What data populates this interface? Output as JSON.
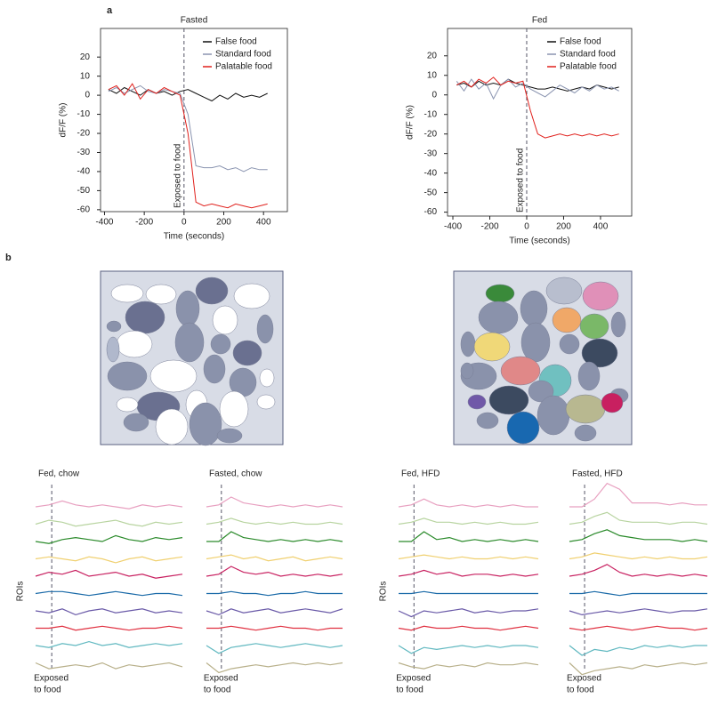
{
  "panel_labels": [
    "a",
    "b"
  ],
  "chart_data": [
    {
      "type": "line",
      "title": "Fasted",
      "x_label": "Time (seconds)",
      "y_label": "dF/F (%)",
      "annotation": "Exposed to food",
      "vline": 0,
      "xlim": [
        -420,
        520
      ],
      "ylim": [
        -61,
        35
      ],
      "xticks": [
        -400,
        -200,
        0,
        200,
        400
      ],
      "yticks": [
        -60,
        -50,
        -40,
        -30,
        -20,
        -10,
        0,
        10,
        20
      ],
      "legend": "upper right",
      "x": [
        -380,
        -340,
        -300,
        -260,
        -220,
        -180,
        -140,
        -100,
        -60,
        -20,
        20,
        60,
        100,
        140,
        180,
        220,
        260,
        300,
        340,
        380,
        420
      ],
      "series": [
        {
          "name": "False food",
          "color": "#111111",
          "values": [
            3,
            1,
            4,
            2,
            0,
            3,
            1,
            2,
            0,
            2,
            3,
            1,
            -1,
            -3,
            0,
            -2,
            1,
            -1,
            0,
            -1,
            1
          ]
        },
        {
          "name": "Standard food",
          "color": "#8a94b0",
          "values": [
            2,
            4,
            1,
            3,
            5,
            2,
            1,
            3,
            2,
            1,
            -10,
            -37,
            -38,
            -38,
            -37,
            -39,
            -38,
            -40,
            -38,
            -39,
            -39
          ]
        },
        {
          "name": "Palatable food",
          "color": "#e0201c",
          "values": [
            3,
            5,
            0,
            6,
            -2,
            3,
            1,
            4,
            2,
            0,
            -20,
            -56,
            -58,
            -57,
            -58,
            -59,
            -57,
            -58,
            -59,
            -58,
            -57
          ]
        }
      ]
    },
    {
      "type": "line",
      "title": "Fed",
      "x_label": "Time (seconds)",
      "y_label": "dF/F (%)",
      "annotation": "Exposed to food",
      "vline": 0,
      "xlim": [
        -429,
        569
      ],
      "ylim": [
        -62,
        34
      ],
      "xticks": [
        -400,
        -200,
        0,
        200,
        400
      ],
      "yticks": [
        -60,
        -50,
        -40,
        -30,
        -20,
        -10,
        0,
        10,
        20
      ],
      "legend": "upper right",
      "x": [
        -380,
        -340,
        -300,
        -260,
        -220,
        -180,
        -140,
        -100,
        -60,
        -20,
        20,
        60,
        100,
        140,
        180,
        220,
        260,
        300,
        340,
        380,
        420,
        460,
        500
      ],
      "series": [
        {
          "name": "False food",
          "color": "#111111",
          "values": [
            5,
            6,
            4,
            7,
            5,
            6,
            5,
            8,
            6,
            5,
            4,
            3,
            3,
            4,
            3,
            2,
            3,
            4,
            3,
            5,
            4,
            3,
            4
          ]
        },
        {
          "name": "Standard food",
          "color": "#8a94b0",
          "values": [
            7,
            2,
            8,
            3,
            6,
            -2,
            5,
            8,
            4,
            6,
            3,
            1,
            -1,
            2,
            5,
            3,
            1,
            4,
            2,
            5,
            3,
            4,
            2
          ]
        },
        {
          "name": "Palatable food",
          "color": "#e0201c",
          "values": [
            5,
            7,
            4,
            8,
            6,
            9,
            5,
            7,
            6,
            7,
            -8,
            -20,
            -22,
            -21,
            -20,
            -21,
            -20,
            -21,
            -20,
            -21,
            -20,
            -21,
            -20
          ]
        }
      ]
    },
    {
      "type": "traces",
      "title": "Fed, chow",
      "y_label": "ROIs",
      "annotation": [
        "Exposed",
        "to food"
      ],
      "series": [
        {
          "color": "#e8a0c0",
          "values": [
            0,
            1,
            3,
            1,
            0,
            1,
            0,
            -1,
            1,
            0,
            1,
            0
          ]
        },
        {
          "color": "#b8d4a0",
          "values": [
            0,
            2,
            1,
            -1,
            0,
            1,
            2,
            0,
            -1,
            1,
            0,
            1
          ]
        },
        {
          "color": "#2a8a2a",
          "values": [
            0,
            -1,
            1,
            2,
            1,
            0,
            3,
            1,
            0,
            2,
            1,
            2
          ]
        },
        {
          "color": "#f0d070",
          "values": [
            0,
            1,
            0,
            -1,
            1,
            0,
            -2,
            0,
            1,
            -1,
            0,
            1
          ]
        },
        {
          "color": "#c82060",
          "values": [
            0,
            2,
            1,
            3,
            0,
            1,
            2,
            0,
            1,
            -1,
            0,
            1
          ]
        },
        {
          "color": "#1a6aa8",
          "values": [
            0,
            1,
            1,
            0,
            -1,
            0,
            1,
            0,
            -1,
            0,
            0,
            -1
          ]
        },
        {
          "color": "#6a5aa8",
          "values": [
            0,
            -1,
            1,
            -2,
            0,
            1,
            -1,
            0,
            1,
            -1,
            0,
            -1
          ]
        },
        {
          "color": "#e03040",
          "values": [
            0,
            0,
            1,
            -1,
            0,
            1,
            0,
            -1,
            0,
            0,
            1,
            0
          ]
        },
        {
          "color": "#60b8c0",
          "values": [
            0,
            -1,
            1,
            0,
            2,
            0,
            1,
            -1,
            0,
            1,
            0,
            1
          ]
        },
        {
          "color": "#b8b08a",
          "values": [
            0,
            -3,
            -2,
            -1,
            -2,
            0,
            -3,
            -1,
            -2,
            -1,
            0,
            -2
          ]
        }
      ]
    },
    {
      "type": "traces",
      "title": "Fasted, chow",
      "annotation": [
        "Exposed",
        "to food"
      ],
      "series": [
        {
          "color": "#e8a0c0",
          "values": [
            0,
            1,
            5,
            2,
            1,
            0,
            1,
            0,
            1,
            0,
            1,
            0
          ]
        },
        {
          "color": "#b8d4a0",
          "values": [
            0,
            1,
            3,
            1,
            0,
            1,
            0,
            1,
            0,
            0,
            1,
            0
          ]
        },
        {
          "color": "#2a8a2a",
          "values": [
            0,
            0,
            5,
            2,
            1,
            0,
            1,
            0,
            1,
            0,
            1,
            0
          ]
        },
        {
          "color": "#f0d070",
          "values": [
            0,
            1,
            2,
            0,
            1,
            -1,
            0,
            1,
            -1,
            0,
            1,
            0
          ]
        },
        {
          "color": "#c82060",
          "values": [
            0,
            1,
            5,
            2,
            1,
            2,
            0,
            1,
            0,
            1,
            0,
            1
          ]
        },
        {
          "color": "#1a6aa8",
          "values": [
            0,
            0,
            1,
            0,
            0,
            -1,
            0,
            0,
            1,
            0,
            0,
            0
          ]
        },
        {
          "color": "#6a5aa8",
          "values": [
            0,
            -2,
            1,
            -1,
            0,
            1,
            -1,
            0,
            1,
            0,
            -1,
            1
          ]
        },
        {
          "color": "#e03040",
          "values": [
            0,
            0,
            1,
            0,
            -1,
            0,
            1,
            0,
            0,
            -1,
            0,
            0
          ]
        },
        {
          "color": "#60b8c0",
          "values": [
            0,
            -4,
            -1,
            0,
            1,
            0,
            -1,
            0,
            1,
            0,
            -1,
            0
          ]
        },
        {
          "color": "#b8b08a",
          "values": [
            0,
            -5,
            -3,
            -2,
            -1,
            -2,
            -1,
            0,
            -1,
            0,
            -1,
            0
          ]
        }
      ]
    },
    {
      "type": "traces",
      "title": "Fed, HFD",
      "y_label": "ROIs",
      "annotation": [
        "Exposed",
        "to food"
      ],
      "series": [
        {
          "color": "#e8a0c0",
          "values": [
            0,
            1,
            4,
            1,
            0,
            1,
            0,
            1,
            0,
            1,
            0,
            0
          ]
        },
        {
          "color": "#b8d4a0",
          "values": [
            0,
            1,
            3,
            1,
            1,
            0,
            1,
            0,
            1,
            0,
            0,
            1
          ]
        },
        {
          "color": "#2a8a2a",
          "values": [
            0,
            0,
            5,
            1,
            2,
            0,
            1,
            0,
            1,
            0,
            1,
            0
          ]
        },
        {
          "color": "#f0d070",
          "values": [
            0,
            1,
            2,
            1,
            0,
            1,
            0,
            0,
            1,
            0,
            1,
            0
          ]
        },
        {
          "color": "#c82060",
          "values": [
            0,
            1,
            3,
            1,
            2,
            0,
            1,
            1,
            0,
            1,
            0,
            1
          ]
        },
        {
          "color": "#1a6aa8",
          "values": [
            0,
            0,
            1,
            0,
            0,
            0,
            0,
            0,
            0,
            0,
            0,
            0
          ]
        },
        {
          "color": "#6a5aa8",
          "values": [
            0,
            -3,
            0,
            -1,
            0,
            1,
            -1,
            0,
            -1,
            0,
            0,
            1
          ]
        },
        {
          "color": "#e03040",
          "values": [
            0,
            -1,
            1,
            0,
            0,
            1,
            0,
            0,
            -1,
            0,
            1,
            0
          ]
        },
        {
          "color": "#60b8c0",
          "values": [
            0,
            -4,
            -1,
            -2,
            -1,
            0,
            -1,
            0,
            -1,
            0,
            0,
            -1
          ]
        },
        {
          "color": "#b8b08a",
          "values": [
            0,
            -2,
            -3,
            -1,
            -2,
            -1,
            -2,
            0,
            -1,
            -1,
            0,
            -1
          ]
        }
      ]
    },
    {
      "type": "traces",
      "title": "Fasted, HFD",
      "annotation": [
        "Exposed",
        "to food"
      ],
      "series": [
        {
          "color": "#e8a0c0",
          "values": [
            0,
            0,
            4,
            12,
            9,
            2,
            2,
            2,
            1,
            2,
            1,
            1
          ]
        },
        {
          "color": "#b8d4a0",
          "values": [
            0,
            1,
            4,
            6,
            2,
            1,
            1,
            1,
            0,
            1,
            1,
            0
          ]
        },
        {
          "color": "#2a8a2a",
          "values": [
            0,
            1,
            4,
            6,
            3,
            2,
            1,
            1,
            1,
            0,
            1,
            0
          ]
        },
        {
          "color": "#f0d070",
          "values": [
            0,
            1,
            3,
            2,
            1,
            0,
            1,
            0,
            1,
            0,
            0,
            1
          ]
        },
        {
          "color": "#c82060",
          "values": [
            0,
            1,
            3,
            6,
            2,
            0,
            1,
            0,
            1,
            0,
            1,
            0
          ]
        },
        {
          "color": "#1a6aa8",
          "values": [
            0,
            0,
            1,
            0,
            -1,
            0,
            0,
            0,
            0,
            0,
            0,
            0
          ]
        },
        {
          "color": "#6a5aa8",
          "values": [
            0,
            -2,
            -1,
            0,
            -1,
            0,
            1,
            0,
            -1,
            0,
            0,
            1
          ]
        },
        {
          "color": "#e03040",
          "values": [
            0,
            -1,
            0,
            1,
            0,
            -1,
            0,
            1,
            0,
            0,
            -1,
            0
          ]
        },
        {
          "color": "#60b8c0",
          "values": [
            0,
            -5,
            -2,
            -3,
            -1,
            -2,
            0,
            -1,
            0,
            -1,
            0,
            0
          ]
        },
        {
          "color": "#b8b08a",
          "values": [
            0,
            -6,
            -4,
            -3,
            -2,
            -3,
            -1,
            -2,
            -1,
            0,
            -1,
            0
          ]
        }
      ]
    }
  ]
}
